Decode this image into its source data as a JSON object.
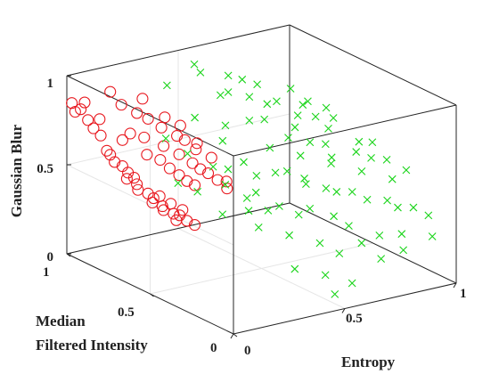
{
  "chart_data": {
    "type": "scatter",
    "title": "",
    "axes": {
      "x": {
        "label": "Entropy",
        "ticks": [
          "0",
          "0.5",
          "1"
        ],
        "range": [
          0,
          1
        ]
      },
      "y": {
        "label_lines": [
          "Median",
          "Filtered Intensity"
        ],
        "ticks": [
          "0",
          "0.5",
          "1"
        ],
        "range": [
          0,
          1
        ]
      },
      "z": {
        "label": "Gaussian Blur",
        "ticks": [
          "0",
          "0.5",
          "1"
        ],
        "range": [
          0,
          1
        ]
      }
    },
    "grid": true,
    "box": true,
    "colors": {
      "series_a": "#e8171e",
      "series_b": "#19d419"
    },
    "series": [
      {
        "marker": "circle",
        "color": "#e8171e",
        "points": [
          [
            0.0,
            0.95,
            0.82
          ],
          [
            0.01,
            0.93,
            0.84
          ],
          [
            0.02,
            0.9,
            0.79
          ],
          [
            0.0,
            0.97,
            0.86
          ],
          [
            0.03,
            0.88,
            0.75
          ],
          [
            0.02,
            0.92,
            0.88
          ],
          [
            0.04,
            0.85,
            0.72
          ],
          [
            0.05,
            0.87,
            0.8
          ],
          [
            0.03,
            0.8,
            0.66
          ],
          [
            0.06,
            0.82,
            0.62
          ],
          [
            0.05,
            0.78,
            0.6
          ],
          [
            0.07,
            0.76,
            0.58
          ],
          [
            0.08,
            0.74,
            0.55
          ],
          [
            0.06,
            0.72,
            0.53
          ],
          [
            0.09,
            0.7,
            0.5
          ],
          [
            0.1,
            0.73,
            0.52
          ],
          [
            0.08,
            0.68,
            0.48
          ],
          [
            0.11,
            0.66,
            0.46
          ],
          [
            0.12,
            0.64,
            0.44
          ],
          [
            0.1,
            0.62,
            0.43
          ],
          [
            0.13,
            0.6,
            0.41
          ],
          [
            0.14,
            0.63,
            0.45
          ],
          [
            0.12,
            0.58,
            0.4
          ],
          [
            0.15,
            0.56,
            0.38
          ],
          [
            0.16,
            0.59,
            0.42
          ],
          [
            0.17,
            0.55,
            0.37
          ],
          [
            0.14,
            0.53,
            0.36
          ],
          [
            0.18,
            0.52,
            0.35
          ],
          [
            0.19,
            0.56,
            0.39
          ],
          [
            0.2,
            0.5,
            0.33
          ],
          [
            0.1,
            0.8,
            0.7
          ],
          [
            0.12,
            0.78,
            0.74
          ],
          [
            0.15,
            0.72,
            0.64
          ],
          [
            0.18,
            0.68,
            0.62
          ],
          [
            0.2,
            0.65,
            0.58
          ],
          [
            0.16,
            0.75,
            0.72
          ],
          [
            0.22,
            0.62,
            0.55
          ],
          [
            0.24,
            0.6,
            0.52
          ],
          [
            0.26,
            0.58,
            0.5
          ],
          [
            0.21,
            0.7,
            0.68
          ],
          [
            0.25,
            0.66,
            0.64
          ],
          [
            0.28,
            0.62,
            0.6
          ],
          [
            0.3,
            0.6,
            0.57
          ],
          [
            0.27,
            0.7,
            0.72
          ],
          [
            0.23,
            0.74,
            0.76
          ],
          [
            0.32,
            0.58,
            0.55
          ],
          [
            0.34,
            0.55,
            0.52
          ],
          [
            0.29,
            0.68,
            0.7
          ],
          [
            0.31,
            0.64,
            0.66
          ],
          [
            0.18,
            0.82,
            0.82
          ],
          [
            0.14,
            0.86,
            0.86
          ],
          [
            0.2,
            0.78,
            0.8
          ],
          [
            0.35,
            0.6,
            0.62
          ],
          [
            0.33,
            0.66,
            0.68
          ],
          [
            0.26,
            0.76,
            0.8
          ],
          [
            0.12,
            0.9,
            0.92
          ],
          [
            0.22,
            0.84,
            0.88
          ],
          [
            0.36,
            0.52,
            0.48
          ],
          [
            0.38,
            0.55,
            0.5
          ],
          [
            0.3,
            0.72,
            0.76
          ]
        ]
      },
      {
        "marker": "x",
        "color": "#19d419",
        "points": [
          [
            0.2,
            0.6,
            0.52
          ],
          [
            0.25,
            0.55,
            0.48
          ],
          [
            0.3,
            0.45,
            0.55
          ],
          [
            0.35,
            0.5,
            0.6
          ],
          [
            0.4,
            0.4,
            0.5
          ],
          [
            0.45,
            0.35,
            0.62
          ],
          [
            0.5,
            0.45,
            0.7
          ],
          [
            0.55,
            0.3,
            0.55
          ],
          [
            0.6,
            0.4,
            0.65
          ],
          [
            0.65,
            0.25,
            0.5
          ],
          [
            0.7,
            0.35,
            0.6
          ],
          [
            0.75,
            0.2,
            0.45
          ],
          [
            0.8,
            0.3,
            0.55
          ],
          [
            0.85,
            0.15,
            0.4
          ],
          [
            0.9,
            0.25,
            0.5
          ],
          [
            0.95,
            0.1,
            0.35
          ],
          [
            0.55,
            0.55,
            0.8
          ],
          [
            0.6,
            0.6,
            0.85
          ],
          [
            0.65,
            0.5,
            0.75
          ],
          [
            0.7,
            0.55,
            0.78
          ],
          [
            0.4,
            0.6,
            0.7
          ],
          [
            0.45,
            0.65,
            0.75
          ],
          [
            0.35,
            0.7,
            0.8
          ],
          [
            0.5,
            0.7,
            0.9
          ],
          [
            0.3,
            0.8,
            0.95
          ],
          [
            0.45,
            0.8,
            0.98
          ],
          [
            0.6,
            0.75,
            0.92
          ],
          [
            0.75,
            0.45,
            0.65
          ],
          [
            0.8,
            0.5,
            0.7
          ],
          [
            0.85,
            0.4,
            0.6
          ],
          [
            0.9,
            0.45,
            0.62
          ],
          [
            0.95,
            0.35,
            0.55
          ],
          [
            1.0,
            0.3,
            0.5
          ],
          [
            0.6,
            0.2,
            0.4
          ],
          [
            0.5,
            0.15,
            0.3
          ],
          [
            0.4,
            0.2,
            0.35
          ],
          [
            0.55,
            0.1,
            0.25
          ],
          [
            0.65,
            0.1,
            0.28
          ],
          [
            0.7,
            0.05,
            0.2
          ],
          [
            0.45,
            0.05,
            0.18
          ],
          [
            0.35,
            0.1,
            0.22
          ],
          [
            0.8,
            0.05,
            0.22
          ],
          [
            0.3,
            0.25,
            0.4
          ],
          [
            0.38,
            0.3,
            0.45
          ],
          [
            0.48,
            0.25,
            0.42
          ],
          [
            0.58,
            0.35,
            0.55
          ],
          [
            0.68,
            0.45,
            0.68
          ],
          [
            0.78,
            0.55,
            0.75
          ],
          [
            0.88,
            0.35,
            0.58
          ],
          [
            0.72,
            0.25,
            0.48
          ],
          [
            0.62,
            0.5,
            0.7
          ],
          [
            0.52,
            0.6,
            0.78
          ],
          [
            0.42,
            0.5,
            0.62
          ],
          [
            0.32,
            0.55,
            0.6
          ],
          [
            0.22,
            0.7,
            0.72
          ],
          [
            0.28,
            0.65,
            0.64
          ],
          [
            0.36,
            0.4,
            0.48
          ],
          [
            0.44,
            0.45,
            0.56
          ],
          [
            0.54,
            0.4,
            0.58
          ],
          [
            0.64,
            0.3,
            0.5
          ],
          [
            0.74,
            0.4,
            0.6
          ],
          [
            0.84,
            0.2,
            0.42
          ],
          [
            0.92,
            0.15,
            0.38
          ],
          [
            0.68,
            0.65,
            0.82
          ],
          [
            0.58,
            0.68,
            0.86
          ],
          [
            0.48,
            0.72,
            0.88
          ],
          [
            0.76,
            0.6,
            0.8
          ],
          [
            0.86,
            0.55,
            0.72
          ],
          [
            0.96,
            0.45,
            0.6
          ],
          [
            0.82,
            0.65,
            0.78
          ],
          [
            0.25,
            0.4,
            0.42
          ],
          [
            0.33,
            0.35,
            0.44
          ],
          [
            0.43,
            0.3,
            0.46
          ],
          [
            0.53,
            0.25,
            0.44
          ],
          [
            0.63,
            0.15,
            0.36
          ],
          [
            0.73,
            0.1,
            0.3
          ],
          [
            0.83,
            0.1,
            0.28
          ],
          [
            0.93,
            0.05,
            0.26
          ],
          [
            0.57,
            0.05,
            0.1
          ],
          [
            0.47,
            0.02,
            0.08
          ],
          [
            0.88,
            0.62,
            0.74
          ],
          [
            0.78,
            0.7,
            0.84
          ],
          [
            0.66,
            0.74,
            0.88
          ],
          [
            0.56,
            0.78,
            0.94
          ],
          [
            0.46,
            0.85,
            1.0
          ]
        ]
      }
    ]
  }
}
